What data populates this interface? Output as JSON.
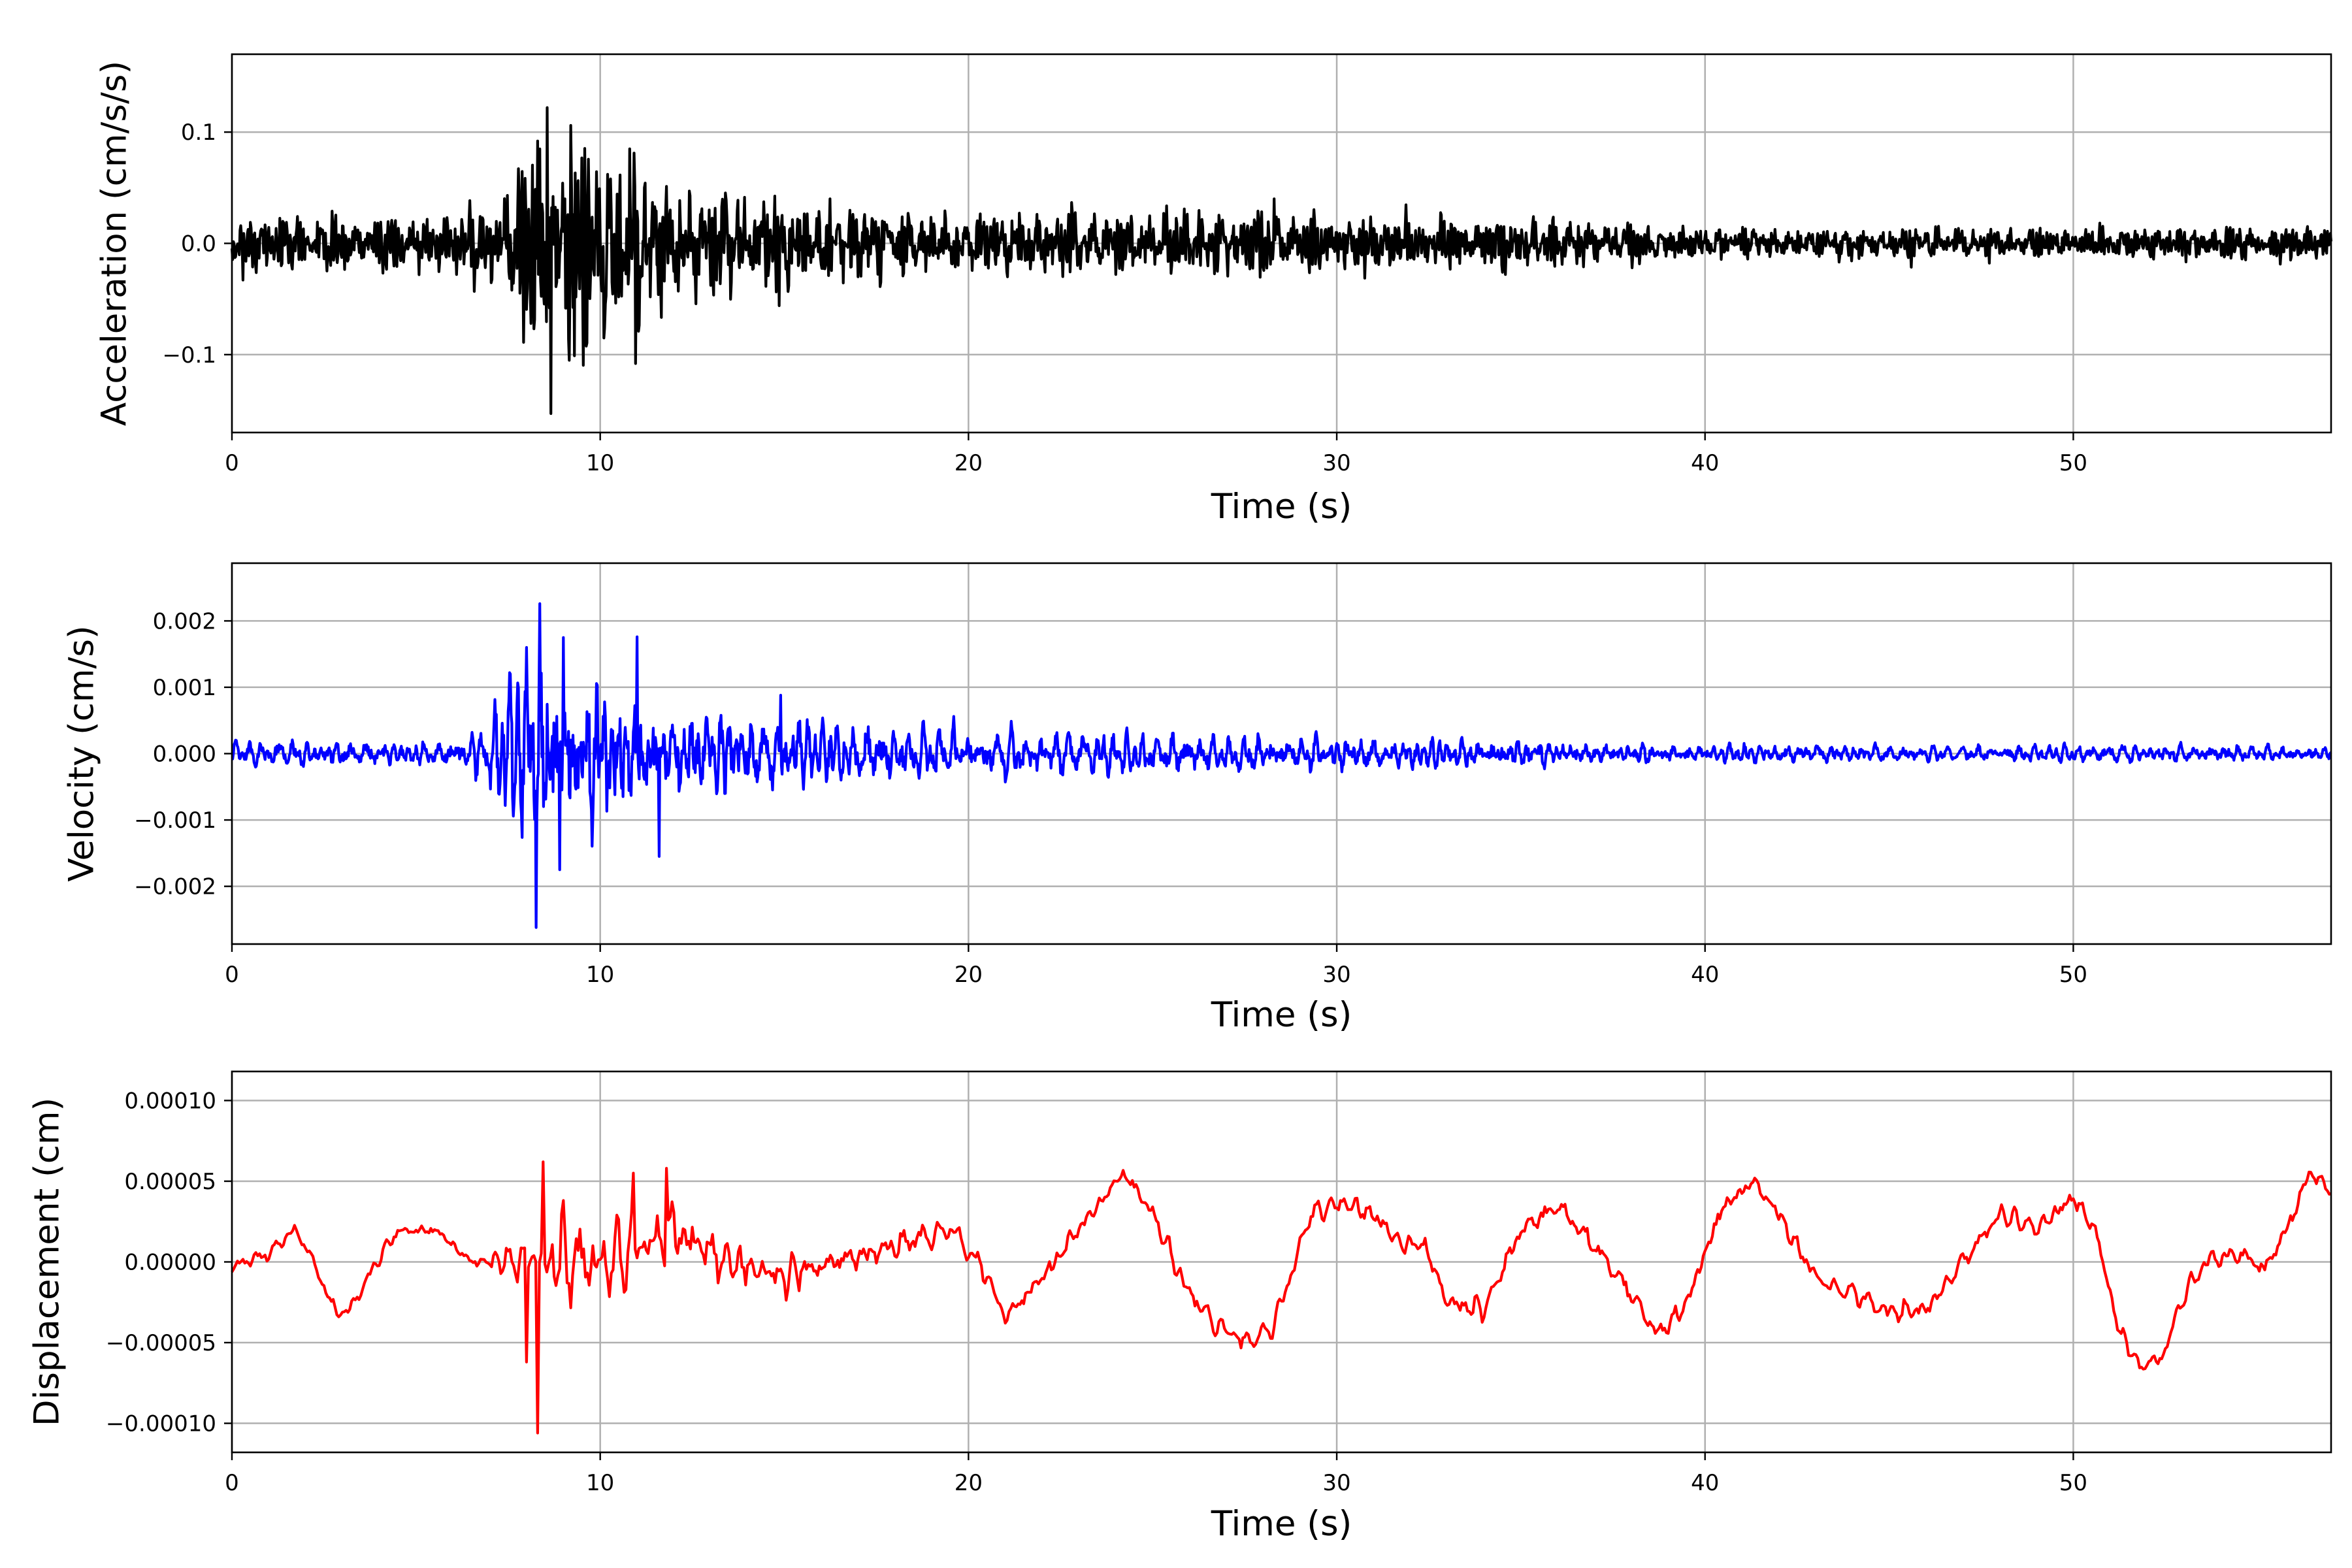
{
  "figure": {
    "background": "#ffffff",
    "grid_color": "#b0b0b0"
  },
  "chart_data": [
    {
      "id": "acceleration",
      "type": "line",
      "title": "",
      "xlabel": "Time (s)",
      "ylabel": "Acceleration (cm/s/s)",
      "xlim": [
        0,
        57
      ],
      "ylim": [
        -0.17,
        0.17
      ],
      "xticks": [
        0,
        10,
        20,
        30,
        40,
        50
      ],
      "xtick_labels": [
        "0",
        "10",
        "20",
        "30",
        "40",
        "50"
      ],
      "yticks": [
        -0.1,
        0.0,
        0.1
      ],
      "ytick_labels": [
        "−0.1",
        "0.0",
        "0.1"
      ],
      "grid": true,
      "series": [
        {
          "color": "#000000",
          "sample_step": 0.02,
          "seed": 11,
          "noise_freq": [
            0.0,
            25.0
          ],
          "amplitude_envelope": {
            "t": [
              0,
              6,
              7.5,
              8.5,
              9.5,
              11,
              12,
              16,
              20,
              25,
              30,
              35,
              40,
              45,
              50,
              55,
              57
            ],
            "amp": [
              0.018,
              0.018,
              0.04,
              0.085,
              0.075,
              0.06,
              0.045,
              0.03,
              0.024,
              0.021,
              0.019,
              0.017,
              0.013,
              0.012,
              0.011,
              0.011,
              0.011
            ]
          },
          "peaks": [
            {
              "t": 8.55,
              "value": 0.122
            },
            {
              "t": 8.65,
              "value": -0.153
            },
            {
              "t": 8.3,
              "value": 0.092
            },
            {
              "t": 9.2,
              "value": 0.106
            },
            {
              "t": 9.3,
              "value": -0.101
            },
            {
              "t": 10.8,
              "value": 0.085
            },
            {
              "t": 10.95,
              "value": -0.108
            },
            {
              "t": 10.1,
              "value": -0.085
            },
            {
              "t": 14.85,
              "value": -0.056
            },
            {
              "t": 28.3,
              "value": 0.04
            },
            {
              "t": 0.3,
              "value": -0.033
            }
          ]
        }
      ]
    },
    {
      "id": "velocity",
      "type": "line",
      "title": "",
      "xlabel": "Time (s)",
      "ylabel": "Velocity (cm/s)",
      "xlim": [
        0,
        57
      ],
      "ylim": [
        -0.00287,
        0.00287
      ],
      "xticks": [
        0,
        10,
        20,
        30,
        40,
        50
      ],
      "xtick_labels": [
        "0",
        "10",
        "20",
        "30",
        "40",
        "50"
      ],
      "yticks": [
        -0.002,
        -0.001,
        0.0,
        0.001,
        0.002
      ],
      "ytick_labels": [
        "−0.002",
        "−0.001",
        "0.000",
        "0.001",
        "0.002"
      ],
      "grid": true,
      "series": [
        {
          "color": "#0000ff",
          "sample_step": 0.02,
          "seed": 23,
          "noise_freq": [
            2.0,
            8.0
          ],
          "amplitude_envelope": {
            "t": [
              0,
              6,
              7,
              8,
              9,
              10,
              11,
              12,
              15,
              20,
              25,
              30,
              35,
              38,
              42,
              45,
              50,
              55,
              57
            ],
            "amp": [
              0.00016,
              0.00016,
              0.0005,
              0.0011,
              0.0012,
              0.001,
              0.00085,
              0.0006,
              0.00045,
              0.00028,
              0.00024,
              0.0002,
              0.00018,
              0.00012,
              0.00012,
              0.0001,
              0.0001,
              0.0001,
              0.0001
            ]
          },
          "peaks": [
            {
              "t": 8.35,
              "value": 0.00226
            },
            {
              "t": 8.25,
              "value": -0.00262
            },
            {
              "t": 11.0,
              "value": 0.00176
            },
            {
              "t": 11.6,
              "value": -0.00155
            },
            {
              "t": 9.0,
              "value": 0.00175
            },
            {
              "t": 8.9,
              "value": -0.00175
            },
            {
              "t": 8.0,
              "value": 0.0016
            },
            {
              "t": 14.9,
              "value": 0.00088
            },
            {
              "t": 19.6,
              "value": 0.00056
            }
          ]
        }
      ]
    },
    {
      "id": "displacement",
      "type": "line",
      "title": "",
      "xlabel": "Time (s)",
      "ylabel": "Displacement (cm)",
      "xlim": [
        0,
        57
      ],
      "ylim": [
        -0.000118,
        0.000118
      ],
      "xticks": [
        0,
        10,
        20,
        30,
        40,
        50
      ],
      "xtick_labels": [
        "0",
        "10",
        "20",
        "30",
        "40",
        "50"
      ],
      "yticks": [
        -0.0001,
        -5e-05,
        0.0,
        5e-05,
        0.0001
      ],
      "ytick_labels": [
        "−0.00010",
        "−0.00005",
        "0.00000",
        "0.00005",
        "0.00010"
      ],
      "grid": true,
      "series": [
        {
          "color": "#ff0000",
          "sample_step": 0.05,
          "seed": 37,
          "noise_freq": [
            1.5,
            4.0
          ],
          "baseline": {
            "t": [
              0,
              0.3,
              1,
              1.7,
              2,
              2.8,
              3.2,
              3.8,
              4.5,
              5.5,
              6,
              6.5,
              7.2,
              10,
              12,
              13.5,
              15,
              16.5,
              18,
              19.5,
              20.3,
              21,
              22,
              23,
              24.2,
              25,
              26,
              26.8,
              27.5,
              28.3,
              29.3,
              30,
              31,
              31.8,
              32.4,
              33,
              34,
              35,
              36,
              37,
              38,
              38.7,
              39.4,
              40.5,
              41.3,
              42,
              43,
              44,
              45,
              46,
              47,
              48,
              49,
              50,
              50.6,
              51.2,
              51.8,
              52.4,
              53,
              53.6,
              54.5,
              55.2,
              56,
              56.4,
              57
            ],
            "value": [
              -5e-06,
              0.0,
              5e-06,
              2e-05,
              1e-05,
              -3e-05,
              -3e-05,
              -5e-06,
              2e-05,
              2e-05,
              1e-05,
              0.0,
              0.0,
              0.0,
              2e-05,
              0.0,
              -1e-05,
              0.0,
              1e-05,
              2e-05,
              0.0,
              -3.5e-05,
              -1e-05,
              2e-05,
              5.5e-05,
              3e-05,
              -2e-05,
              -4e-05,
              -5e-05,
              -4e-05,
              3e-05,
              3.7e-05,
              3e-05,
              1e-05,
              1e-05,
              -2.5e-05,
              -3e-05,
              2e-05,
              3.5e-05,
              1e-05,
              -2e-05,
              -4.5e-05,
              -3e-05,
              3.5e-05,
              5e-05,
              3e-05,
              -1e-05,
              -2e-05,
              -3e-05,
              -3e-05,
              0.0,
              3e-05,
              2e-05,
              4e-05,
              2e-05,
              -4e-05,
              -6.5e-05,
              -6e-05,
              -2e-05,
              0.0,
              5e-06,
              -5e-06,
              3e-05,
              5.5e-05,
              4.5e-05
            ]
          },
          "noise_envelope": {
            "t": [
              0,
              7,
              8,
              9,
              10,
              12,
              14,
              16,
              20,
              57
            ],
            "amp": [
              4e-06,
              4e-06,
              2e-05,
              2.2e-05,
              1.8e-05,
              1.5e-05,
              1.2e-05,
              1e-05,
              6e-06,
              5e-06
            ]
          },
          "peaks": [
            {
              "t": 8.3,
              "value": -0.000106
            },
            {
              "t": 8.45,
              "value": 6.2e-05
            },
            {
              "t": 8.0,
              "value": -6.2e-05
            },
            {
              "t": 11.8,
              "value": 5.8e-05
            },
            {
              "t": 10.9,
              "value": 5.5e-05
            }
          ]
        }
      ]
    }
  ]
}
